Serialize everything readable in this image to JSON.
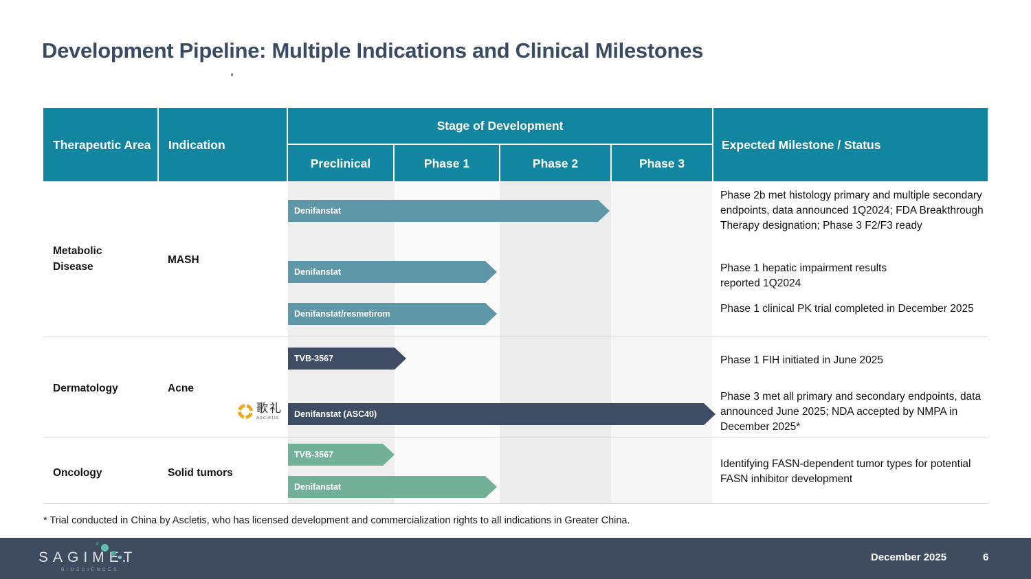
{
  "title": "Development Pipeline: Multiple Indications and Clinical Milestones",
  "colors": {
    "header_teal": "#1285A0",
    "bar_teal": "#5E97A8",
    "bar_navy": "#3E4D63",
    "bar_green": "#72B098",
    "footer_slate": "#3F4C5F",
    "title_navy": "#3B4A64",
    "ascletis_orange": "#F2A71B"
  },
  "table": {
    "header": {
      "therapeutic_area": "Therapeutic Area",
      "indication": "Indication",
      "stage_group": "Stage of Development",
      "stages": [
        "Preclinical",
        "Phase 1",
        "Phase 2",
        "Phase 3"
      ],
      "milestone": "Expected Milestone / Status"
    },
    "rows": [
      {
        "therapeutic_area": "Metabolic Disease",
        "indication": "MASH",
        "bars": [
          {
            "label": "Denifanstat",
            "reaches": "Phase 2"
          },
          {
            "label": "Denifanstat",
            "reaches": "Phase 1"
          },
          {
            "label": "Denifanstat/resmetirom",
            "reaches": "Phase 1"
          }
        ],
        "milestones": [
          "Phase 2b met histology primary and multiple secondary endpoints, data announced 1Q2024; FDA Breakthrough Therapy designation; Phase 3 F2/F3 ready",
          "Phase 1 hepatic impairment results reported 1Q2024",
          "Phase 1 clinical PK trial completed in December 2025"
        ]
      },
      {
        "therapeutic_area": "Dermatology",
        "indication": "Acne",
        "partner_logo": {
          "chinese": "歌礼",
          "latin": "ascletis"
        },
        "bars": [
          {
            "label": "TVB-3567",
            "reaches": "Preclinical"
          },
          {
            "label": "Denifanstat (ASC40)",
            "reaches": "Phase 3"
          }
        ],
        "milestones": [
          "Phase 1 FIH initiated in June 2025",
          "Phase 3 met all primary and secondary endpoints, data announced June 2025; NDA accepted by NMPA in December 2025*"
        ]
      },
      {
        "therapeutic_area": "Oncology",
        "indication": "Solid tumors",
        "bars": [
          {
            "label": "TVB-3567",
            "reaches": "Preclinical"
          },
          {
            "label": "Denifanstat",
            "reaches": "Phase 1"
          }
        ],
        "milestones": [
          "Identifying FASN-dependent tumor types for potential FASN inhibitor development"
        ]
      }
    ]
  },
  "footnote": "* Trial conducted in China by Ascletis, who has licensed development and commercialization rights to all indications in Greater China.",
  "footer": {
    "logo_text": "SAGIMET",
    "logo_subtext": "BIOSCIENCES",
    "date": "December 2025",
    "page": "6"
  }
}
